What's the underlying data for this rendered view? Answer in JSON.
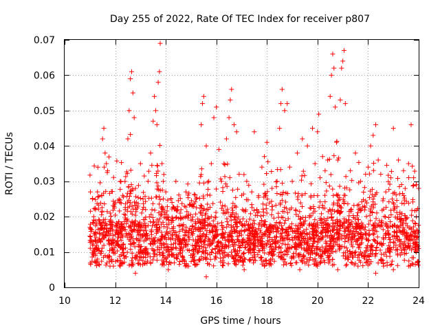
{
  "chart_data": {
    "type": "scatter",
    "title": "Day 255 of 2022, Rate Of TEC Index for receiver p807",
    "xlabel": "GPS time / hours",
    "ylabel": "ROTI / TECUs",
    "xlim": [
      10,
      24
    ],
    "ylim": [
      0,
      0.07
    ],
    "x_ticks": [
      10,
      12,
      14,
      16,
      18,
      20,
      22,
      24
    ],
    "x_tick_labels": [
      "10",
      "12",
      "14",
      "16",
      "18",
      "20",
      "22",
      "24"
    ],
    "y_ticks": [
      0,
      0.01,
      0.02,
      0.03,
      0.04,
      0.05,
      0.06,
      0.07
    ],
    "y_tick_labels": [
      "0",
      "0.01",
      "0.02",
      "0.03",
      "0.04",
      "0.05",
      "0.06",
      "0.07"
    ],
    "grid": true,
    "marker": "plus",
    "color": "#ff0000",
    "data_start_hour": 11.0,
    "series": [
      {
        "name": "ROTI",
        "points": [
          [
            11.05,
            0.013
          ],
          [
            11.1,
            0.025
          ],
          [
            11.15,
            0.02
          ],
          [
            11.2,
            0.011
          ],
          [
            11.3,
            0.027
          ],
          [
            11.4,
            0.018
          ],
          [
            11.5,
            0.042
          ],
          [
            11.55,
            0.045
          ],
          [
            11.6,
            0.038
          ],
          [
            11.65,
            0.035
          ],
          [
            11.7,
            0.033
          ],
          [
            11.8,
            0.021
          ],
          [
            11.9,
            0.016
          ],
          [
            12.0,
            0.024
          ],
          [
            12.1,
            0.012
          ],
          [
            12.2,
            0.03
          ],
          [
            12.3,
            0.026
          ],
          [
            12.4,
            0.022
          ],
          [
            12.5,
            0.042
          ],
          [
            12.55,
            0.05
          ],
          [
            12.6,
            0.059
          ],
          [
            12.65,
            0.061
          ],
          [
            12.7,
            0.055
          ],
          [
            12.75,
            0.048
          ],
          [
            12.8,
            0.028
          ],
          [
            12.9,
            0.018
          ],
          [
            13.0,
            0.035
          ],
          [
            13.1,
            0.025
          ],
          [
            13.2,
            0.022
          ],
          [
            13.3,
            0.03
          ],
          [
            13.4,
            0.038
          ],
          [
            13.5,
            0.047
          ],
          [
            13.55,
            0.054
          ],
          [
            13.6,
            0.05
          ],
          [
            13.65,
            0.046
          ],
          [
            13.7,
            0.058
          ],
          [
            13.75,
            0.061
          ],
          [
            13.78,
            0.069
          ],
          [
            13.85,
            0.035
          ],
          [
            13.9,
            0.03
          ],
          [
            14.0,
            0.027
          ],
          [
            14.2,
            0.025
          ],
          [
            14.4,
            0.03
          ],
          [
            14.6,
            0.022
          ],
          [
            14.8,
            0.027
          ],
          [
            15.0,
            0.019
          ],
          [
            15.2,
            0.025
          ],
          [
            15.4,
            0.046
          ],
          [
            15.45,
            0.052
          ],
          [
            15.5,
            0.054
          ],
          [
            15.6,
            0.04
          ],
          [
            15.7,
            0.03
          ],
          [
            15.8,
            0.035
          ],
          [
            15.9,
            0.048
          ],
          [
            16.0,
            0.051
          ],
          [
            16.1,
            0.039
          ],
          [
            16.2,
            0.03
          ],
          [
            16.3,
            0.035
          ],
          [
            16.4,
            0.042
          ],
          [
            16.5,
            0.048
          ],
          [
            16.55,
            0.053
          ],
          [
            16.6,
            0.056
          ],
          [
            16.7,
            0.046
          ],
          [
            16.8,
            0.044
          ],
          [
            16.9,
            0.032
          ],
          [
            17.0,
            0.026
          ],
          [
            17.2,
            0.03
          ],
          [
            17.4,
            0.027
          ],
          [
            17.5,
            0.044
          ],
          [
            17.6,
            0.022
          ],
          [
            17.8,
            0.034
          ],
          [
            17.9,
            0.037
          ],
          [
            18.0,
            0.041
          ],
          [
            18.2,
            0.028
          ],
          [
            18.4,
            0.03
          ],
          [
            18.5,
            0.045
          ],
          [
            18.55,
            0.052
          ],
          [
            18.6,
            0.056
          ],
          [
            18.7,
            0.05
          ],
          [
            18.8,
            0.052
          ],
          [
            18.9,
            0.034
          ],
          [
            19.0,
            0.03
          ],
          [
            19.2,
            0.038
          ],
          [
            19.4,
            0.042
          ],
          [
            19.6,
            0.04
          ],
          [
            19.8,
            0.045
          ],
          [
            19.9,
            0.035
          ],
          [
            20.0,
            0.044
          ],
          [
            20.05,
            0.049
          ],
          [
            20.1,
            0.031
          ],
          [
            20.2,
            0.037
          ],
          [
            20.3,
            0.033
          ],
          [
            20.4,
            0.036
          ],
          [
            20.5,
            0.054
          ],
          [
            20.55,
            0.06
          ],
          [
            20.6,
            0.066
          ],
          [
            20.65,
            0.062
          ],
          [
            20.7,
            0.051
          ],
          [
            20.75,
            0.041
          ],
          [
            20.8,
            0.036
          ],
          [
            20.9,
            0.053
          ],
          [
            20.95,
            0.062
          ],
          [
            21.0,
            0.064
          ],
          [
            21.05,
            0.067
          ],
          [
            21.1,
            0.052
          ],
          [
            21.3,
            0.033
          ],
          [
            21.5,
            0.038
          ],
          [
            21.7,
            0.03
          ],
          [
            21.9,
            0.032
          ],
          [
            22.0,
            0.034
          ],
          [
            22.1,
            0.04
          ],
          [
            22.2,
            0.043
          ],
          [
            22.3,
            0.046
          ],
          [
            22.4,
            0.036
          ],
          [
            22.5,
            0.032
          ],
          [
            22.7,
            0.027
          ],
          [
            22.9,
            0.031
          ],
          [
            23.0,
            0.045
          ],
          [
            23.2,
            0.036
          ],
          [
            23.4,
            0.033
          ],
          [
            23.6,
            0.035
          ],
          [
            23.7,
            0.046
          ],
          [
            23.8,
            0.031
          ],
          [
            23.9,
            0.029
          ],
          [
            24.0,
            0.028
          ],
          [
            11.3,
            0.008
          ],
          [
            11.6,
            0.009
          ],
          [
            12.2,
            0.006
          ],
          [
            12.8,
            0.004
          ],
          [
            13.4,
            0.007
          ],
          [
            14.1,
            0.005
          ],
          [
            14.9,
            0.006
          ],
          [
            15.6,
            0.003
          ],
          [
            16.3,
            0.007
          ],
          [
            17.1,
            0.005
          ],
          [
            17.9,
            0.006
          ],
          [
            18.6,
            0.008
          ],
          [
            19.3,
            0.005
          ],
          [
            20.1,
            0.007
          ],
          [
            20.8,
            0.005
          ],
          [
            21.6,
            0.006
          ],
          [
            22.3,
            0.004
          ],
          [
            23.0,
            0.005
          ],
          [
            23.6,
            0.006
          ],
          [
            23.95,
            0.007
          ]
        ]
      }
    ]
  }
}
